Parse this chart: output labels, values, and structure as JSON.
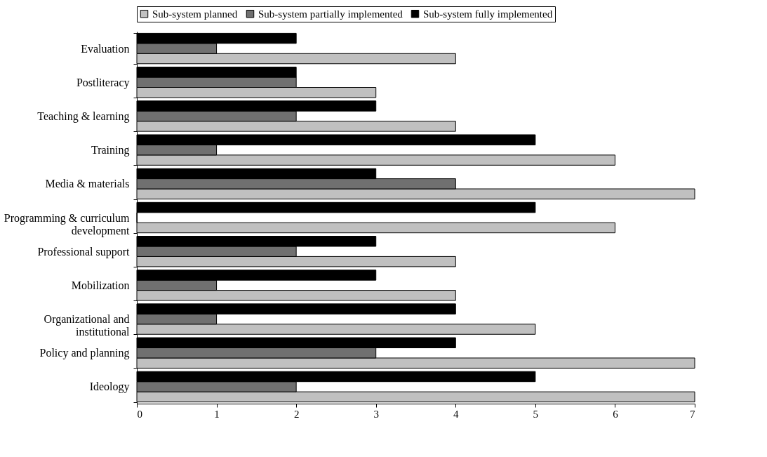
{
  "chart_data": {
    "type": "bar",
    "orientation": "horizontal",
    "categories": [
      "Evaluation",
      "Postliteracy",
      "Teaching & learning",
      "Training",
      "Media & materials",
      "Programming & curriculum development",
      "Professional support",
      "Mobilization",
      "Organizational and institutional",
      "Policy and planning",
      "Ideology"
    ],
    "series": [
      {
        "name": "Sub-system planned",
        "color": "#c0c0c0",
        "values": [
          4,
          3,
          4,
          6,
          7,
          6,
          4,
          4,
          5,
          7,
          7
        ]
      },
      {
        "name": "Sub-system partially implemented",
        "color": "#707070",
        "values": [
          1,
          2,
          2,
          1,
          4,
          0,
          2,
          1,
          1,
          3,
          2
        ]
      },
      {
        "name": "Sub-system fully implemented",
        "color": "#000000",
        "values": [
          2,
          2,
          3,
          5,
          3,
          5,
          3,
          3,
          4,
          4,
          5
        ]
      }
    ],
    "xlim": [
      0,
      7
    ],
    "xticks": [
      0,
      1,
      2,
      3,
      4,
      5,
      6,
      7
    ],
    "grid": false,
    "legend": "top"
  }
}
